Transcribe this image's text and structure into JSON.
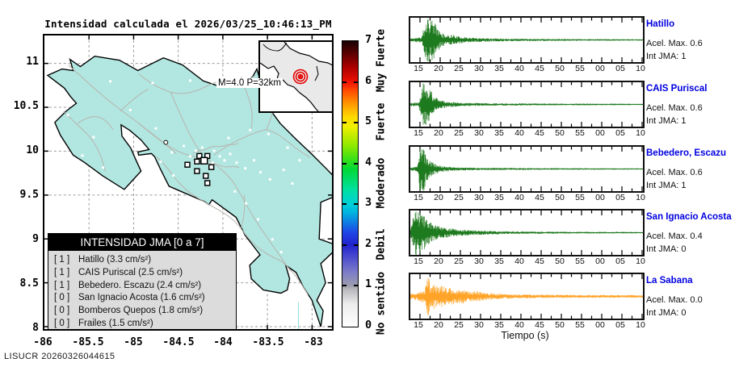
{
  "page": {
    "footer": "LISUCR 20260326044615"
  },
  "map": {
    "title": "Intensidad calculada el 2026/03/25_10:46:13_PM",
    "x_ticks": [
      "-86",
      "-85.5",
      "-85",
      "-84.5",
      "-84",
      "-83.5",
      "-83"
    ],
    "y_ticks": [
      "11",
      "10.5",
      "10",
      "9.5",
      "9",
      "8.5",
      "8"
    ],
    "inset_label": "M=4.0 P=32km",
    "colors": {
      "land": "#b2e7e1",
      "roads": "#b8b2ac",
      "epicenter": "#e60000"
    }
  },
  "legend": {
    "title": "INTENSIDAD JMA [0 a 7]",
    "entries": [
      {
        "badge": "[ 1 ]",
        "label": "Hatillo (3.3 cm/s²)"
      },
      {
        "badge": "[ 1 ]",
        "label": "CAIS Puriscal (2.5 cm/s²)"
      },
      {
        "badge": "[ 1 ]",
        "label": "Bebedero. Escazu (2.4 cm/s²)"
      },
      {
        "badge": "[ 0 ]",
        "label": "San Ignacio Acosta (1.6 cm/s²)"
      },
      {
        "badge": "[ 0 ]",
        "label": "Bomberos Quepos (1.8 cm/s²)"
      },
      {
        "badge": "[ 0 ]",
        "label": "Frailes (1.5 cm/s²)"
      }
    ]
  },
  "colorbar": {
    "ticks": [
      "7",
      "6",
      "5",
      "4",
      "3",
      "2",
      "1",
      "0"
    ],
    "categories": [
      "Muy Fuerte",
      "Fuerte",
      "Moderado",
      "Debil",
      "No sentido"
    ]
  },
  "seismograms": {
    "xlabel": "Tiempo (s)",
    "time_ticks": [
      "15",
      "20",
      "25",
      "30",
      "35",
      "40",
      "45",
      "50",
      "55",
      "00",
      "05",
      "10"
    ],
    "stations": [
      {
        "name": "Hatillo",
        "acel": "Acel. Max. 0.6",
        "jma": "Int JMA: 1",
        "color": "#1e7a1e",
        "seed": 11,
        "spike": [
          22,
          26,
          26
        ],
        "envelope": [
          [
            0,
            1.8
          ],
          [
            14,
            3
          ],
          [
            19,
            22
          ],
          [
            24,
            26
          ],
          [
            30,
            19
          ],
          [
            38,
            8
          ],
          [
            45,
            5
          ],
          [
            52,
            6
          ],
          [
            58,
            4
          ],
          [
            75,
            2.5
          ],
          [
            120,
            1.5
          ],
          [
            200,
            1
          ],
          [
            288,
            0.8
          ]
        ]
      },
      {
        "name": "CAIS Puriscal",
        "acel": "Acel. Max. 0.6",
        "jma": "Int JMA: 1",
        "color": "#1e7a1e",
        "seed": 22,
        "spike": [
          16,
          26,
          25
        ],
        "envelope": [
          [
            0,
            2
          ],
          [
            10,
            2.5
          ],
          [
            14,
            16
          ],
          [
            18,
            26
          ],
          [
            24,
            17
          ],
          [
            30,
            9
          ],
          [
            36,
            5
          ],
          [
            45,
            3.5
          ],
          [
            60,
            2
          ],
          [
            100,
            1.3
          ],
          [
            180,
            1
          ],
          [
            288,
            0.8
          ]
        ]
      },
      {
        "name": "Bebedero, Escazu",
        "acel": "Acel. Max. 0.6",
        "jma": "Int JMA: 1",
        "color": "#1e7a1e",
        "seed": 33,
        "spike": [
          14,
          24,
          25
        ],
        "envelope": [
          [
            0,
            1.5
          ],
          [
            9,
            3
          ],
          [
            12,
            24
          ],
          [
            16,
            26
          ],
          [
            20,
            13
          ],
          [
            26,
            8
          ],
          [
            32,
            5
          ],
          [
            40,
            3
          ],
          [
            55,
            2
          ],
          [
            80,
            1.3
          ],
          [
            150,
            1
          ],
          [
            288,
            0.7
          ]
        ]
      },
      {
        "name": "San Ignacio Acosta",
        "acel": "Acel. Max. 0.4",
        "jma": "Int JMA: 0",
        "color": "#1e7a1e",
        "seed": 44,
        "spike": [
          7,
          26,
          26
        ],
        "envelope": [
          [
            0,
            5
          ],
          [
            4,
            18
          ],
          [
            8,
            26
          ],
          [
            14,
            22
          ],
          [
            20,
            15
          ],
          [
            28,
            10
          ],
          [
            36,
            7
          ],
          [
            48,
            5
          ],
          [
            60,
            3.5
          ],
          [
            80,
            2.5
          ],
          [
            120,
            1.5
          ],
          [
            200,
            1
          ],
          [
            288,
            0.8
          ]
        ]
      },
      {
        "name": "La Sabana",
        "acel": "Acel. Max. 0.0",
        "jma": "Int JMA: 0",
        "color": "#ffa428",
        "seed": 55,
        "spike": [
          22,
          23,
          24
        ],
        "envelope": [
          [
            0,
            3.5
          ],
          [
            10,
            4.5
          ],
          [
            18,
            8
          ],
          [
            22,
            25
          ],
          [
            25,
            11
          ],
          [
            30,
            15
          ],
          [
            35,
            9
          ],
          [
            40,
            13
          ],
          [
            45,
            8
          ],
          [
            52,
            10
          ],
          [
            58,
            7
          ],
          [
            65,
            8
          ],
          [
            72,
            5
          ],
          [
            80,
            6
          ],
          [
            90,
            4.5
          ],
          [
            100,
            3.5
          ],
          [
            120,
            2.5
          ],
          [
            160,
            2
          ],
          [
            220,
            1.6
          ],
          [
            288,
            1.5
          ]
        ]
      }
    ]
  },
  "chart_data": {
    "type": "seismic_intensity_report",
    "title": "Intensidad calculada el 2026/03/25_10:46:13_PM",
    "event": {
      "magnitude": "M=4.0",
      "depth": "P=32km"
    },
    "intensity_scale": {
      "range": [
        0,
        7
      ],
      "labels": {
        "0-1": "No sentido",
        "2": "Debil",
        "3-4": "Moderado",
        "5": "Fuerte",
        "6-7": "Muy Fuerte"
      }
    },
    "map_axes": {
      "lon_ticks": [
        -86,
        -85.5,
        -85,
        -84.5,
        -84,
        -83.5,
        -83
      ],
      "lat_ticks": [
        8,
        8.5,
        9,
        9.5,
        10,
        10.5,
        11
      ]
    },
    "stations_table": {
      "columns": [
        "station",
        "int_jma",
        "acel_cm_s2"
      ],
      "rows": [
        [
          "Hatillo",
          1,
          3.3
        ],
        [
          "CAIS Puriscal",
          1,
          2.5
        ],
        [
          "Bebedero. Escazu",
          1,
          2.4
        ],
        [
          "San Ignacio Acosta",
          0,
          1.6
        ],
        [
          "Bomberos Quepos",
          0,
          1.8
        ],
        [
          "Frailes",
          0,
          1.5
        ]
      ]
    },
    "waveforms": [
      {
        "station": "Hatillo",
        "acel_max": 0.6,
        "int_jma": 1,
        "burst_onset_s": 16
      },
      {
        "station": "CAIS Puriscal",
        "acel_max": 0.6,
        "int_jma": 1,
        "burst_onset_s": 15.5
      },
      {
        "station": "Bebedero, Escazu",
        "acel_max": 0.6,
        "int_jma": 1,
        "burst_onset_s": 15
      },
      {
        "station": "San Ignacio Acosta",
        "acel_max": 0.4,
        "int_jma": 0,
        "burst_onset_s": 13
      },
      {
        "station": "La Sabana",
        "acel_max": 0.0,
        "int_jma": 0,
        "burst_onset_s": 16.5
      }
    ],
    "time_axis": {
      "tick_labels": [
        "15",
        "20",
        "25",
        "30",
        "35",
        "40",
        "45",
        "50",
        "55",
        "00",
        "05",
        "10"
      ],
      "xlabel": "Tiempo (s)"
    }
  }
}
